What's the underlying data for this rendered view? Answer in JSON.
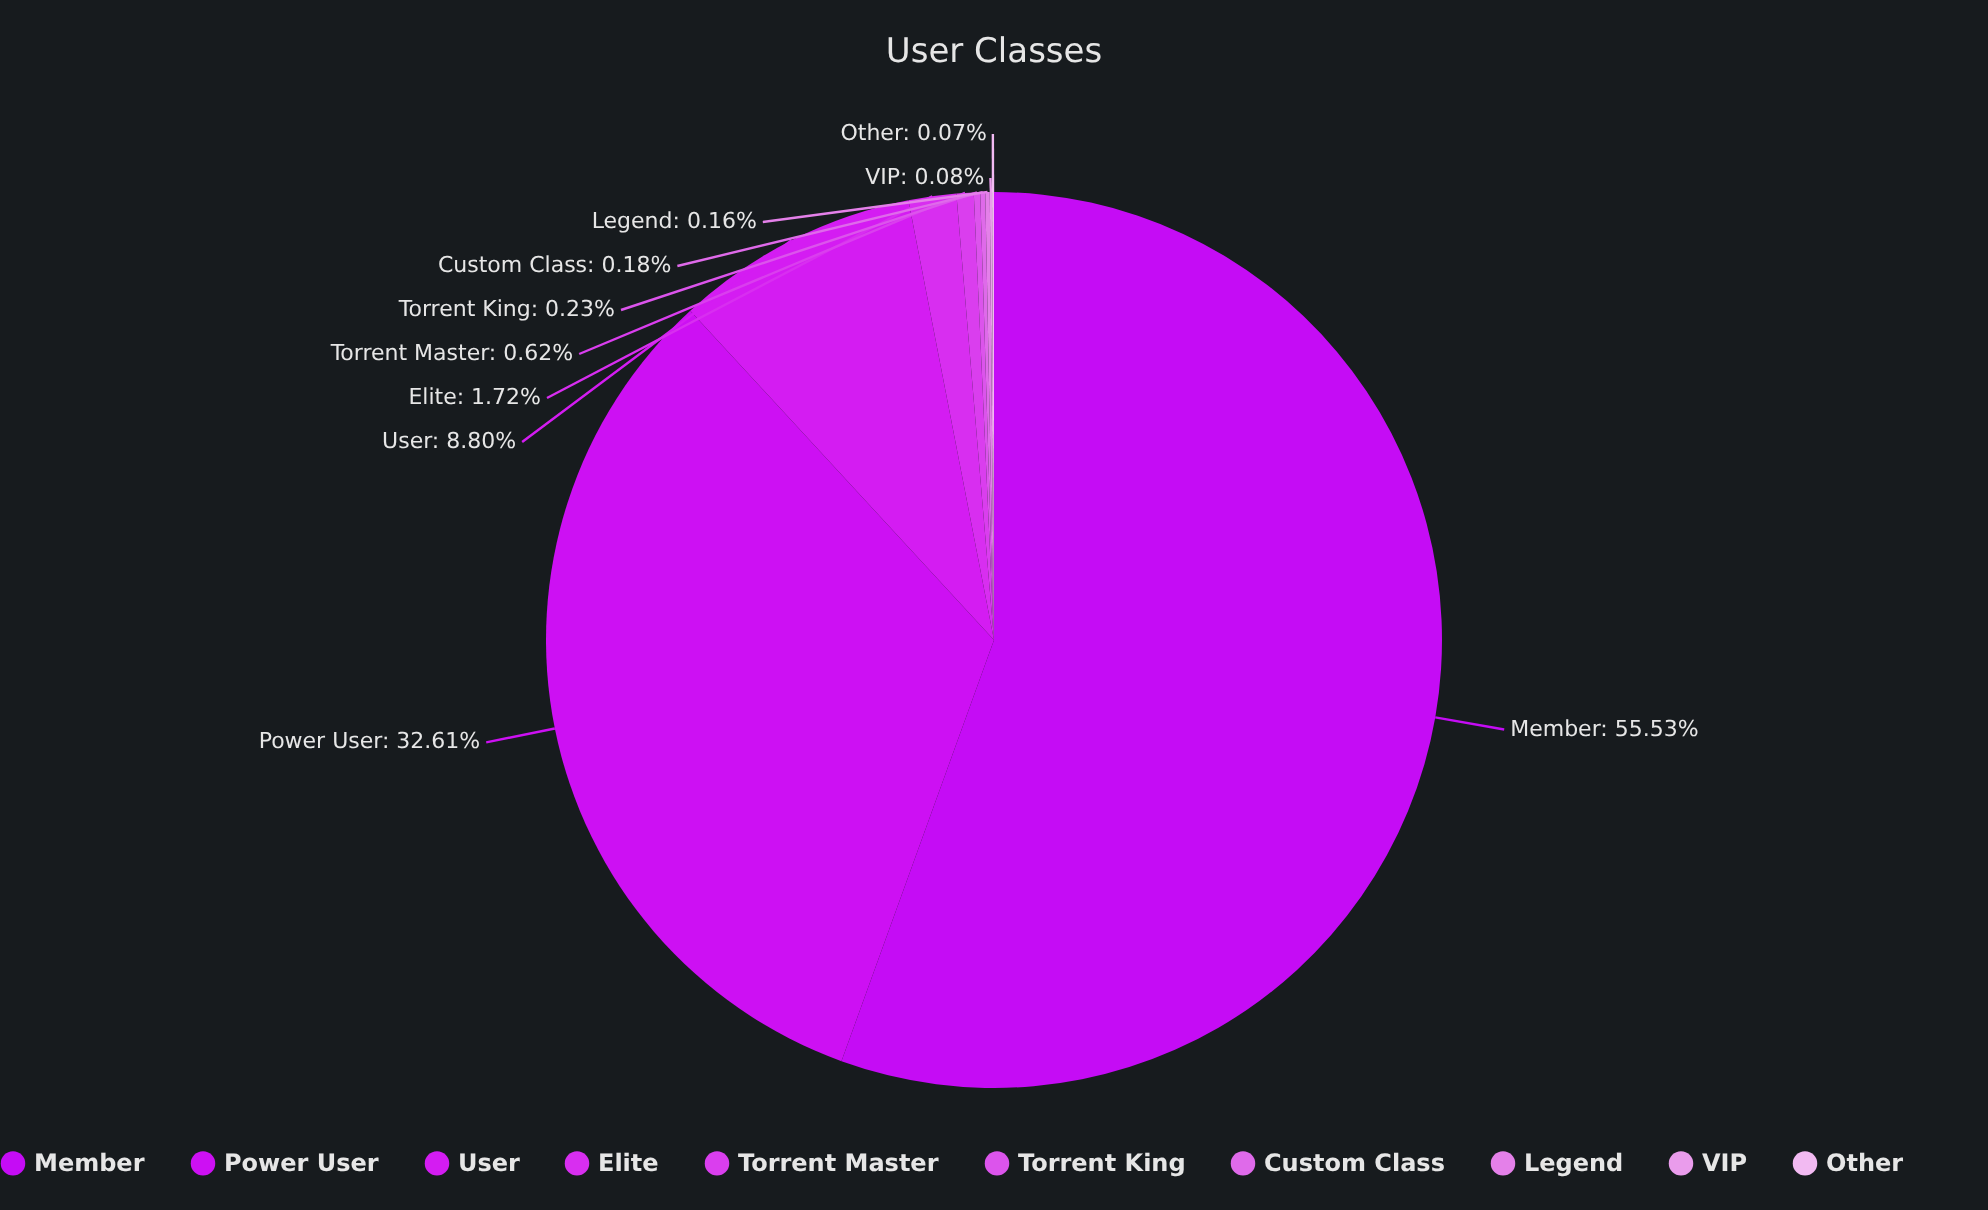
{
  "chart_data": {
    "type": "pie",
    "title": "User Classes",
    "categories": [
      "Member",
      "Power User",
      "User",
      "Elite",
      "Torrent Master",
      "Torrent King",
      "Custom Class",
      "Legend",
      "VIP",
      "Other"
    ],
    "values": [
      55.53,
      32.61,
      8.8,
      1.72,
      0.62,
      0.23,
      0.18,
      0.16,
      0.08,
      0.07
    ],
    "colors": [
      "#c50cf5",
      "#cd10f3",
      "#d41cf2",
      "#d82ef0",
      "#da3eee",
      "#dc54ec",
      "#df6aea",
      "#e480e9",
      "#ea9cec",
      "#f2baf2"
    ],
    "value_labels": [
      "Member: 55.53%",
      "Power User: 32.61%",
      "User: 8.80%",
      "Elite: 1.72%",
      "Torrent Master: 0.62%",
      "Torrent King: 0.23%",
      "Custom Class: 0.18%",
      "Legend: 0.16%",
      "VIP: 0.08%",
      "Other: 0.07%"
    ],
    "legend": "bottom"
  }
}
